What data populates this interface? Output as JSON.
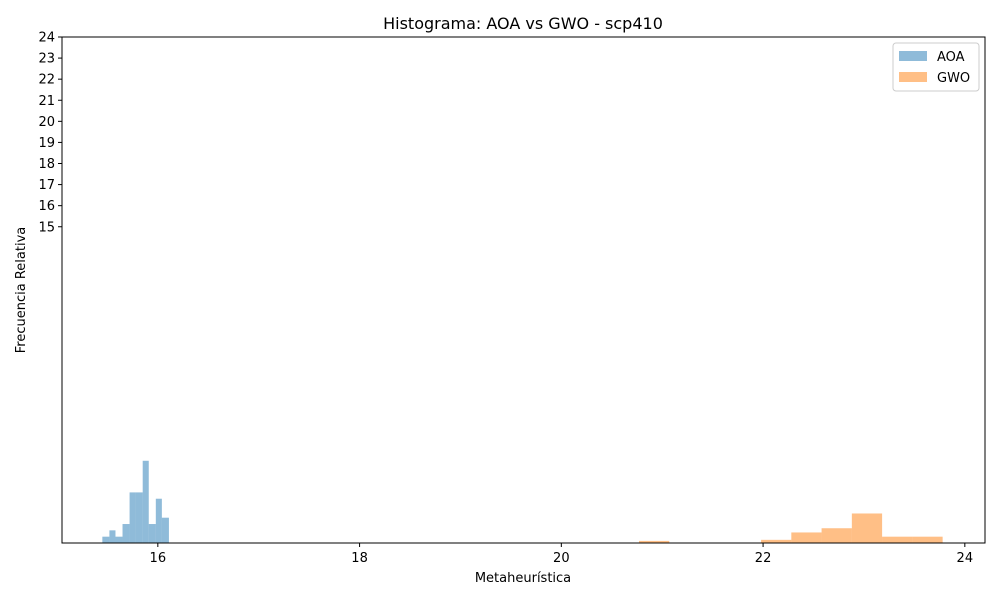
{
  "chart_data": {
    "type": "bar",
    "title": "Histograma: AOA vs GWO - scp410",
    "xlabel": "Metaheurística",
    "ylabel": "Frecuencia Relativa",
    "xlim": [
      15.05,
      24.2
    ],
    "ylim": [
      0,
      24
    ],
    "xticks": [
      "16",
      "18",
      "20",
      "22",
      "24"
    ],
    "yticks": [
      "15",
      "16",
      "17",
      "18",
      "19",
      "20",
      "21",
      "22",
      "23",
      "24"
    ],
    "legend_position": "top-right",
    "series": [
      {
        "name": "AOA",
        "color": "#1f77b4",
        "opacity": 0.5,
        "bins": [
          {
            "x0": 15.45,
            "x1": 15.52,
            "value": 0.3
          },
          {
            "x0": 15.52,
            "x1": 15.58,
            "value": 0.6
          },
          {
            "x0": 15.58,
            "x1": 15.65,
            "value": 0.3
          },
          {
            "x0": 15.65,
            "x1": 15.72,
            "value": 0.9
          },
          {
            "x0": 15.72,
            "x1": 15.78,
            "value": 2.4
          },
          {
            "x0": 15.78,
            "x1": 15.85,
            "value": 2.4
          },
          {
            "x0": 15.85,
            "x1": 15.91,
            "value": 3.9
          },
          {
            "x0": 15.91,
            "x1": 15.98,
            "value": 0.9
          },
          {
            "x0": 15.98,
            "x1": 16.04,
            "value": 2.1
          },
          {
            "x0": 16.04,
            "x1": 16.11,
            "value": 1.2
          }
        ]
      },
      {
        "name": "GWO",
        "color": "#ff7f0e",
        "opacity": 0.5,
        "bins": [
          {
            "x0": 20.77,
            "x1": 21.07,
            "value": 0.1
          },
          {
            "x0": 21.98,
            "x1": 22.28,
            "value": 0.15
          },
          {
            "x0": 22.28,
            "x1": 22.58,
            "value": 0.5
          },
          {
            "x0": 22.58,
            "x1": 22.88,
            "value": 0.7
          },
          {
            "x0": 22.88,
            "x1": 23.18,
            "value": 1.4
          },
          {
            "x0": 23.18,
            "x1": 23.48,
            "value": 0.3
          },
          {
            "x0": 23.48,
            "x1": 23.78,
            "value": 0.3
          }
        ]
      }
    ]
  }
}
